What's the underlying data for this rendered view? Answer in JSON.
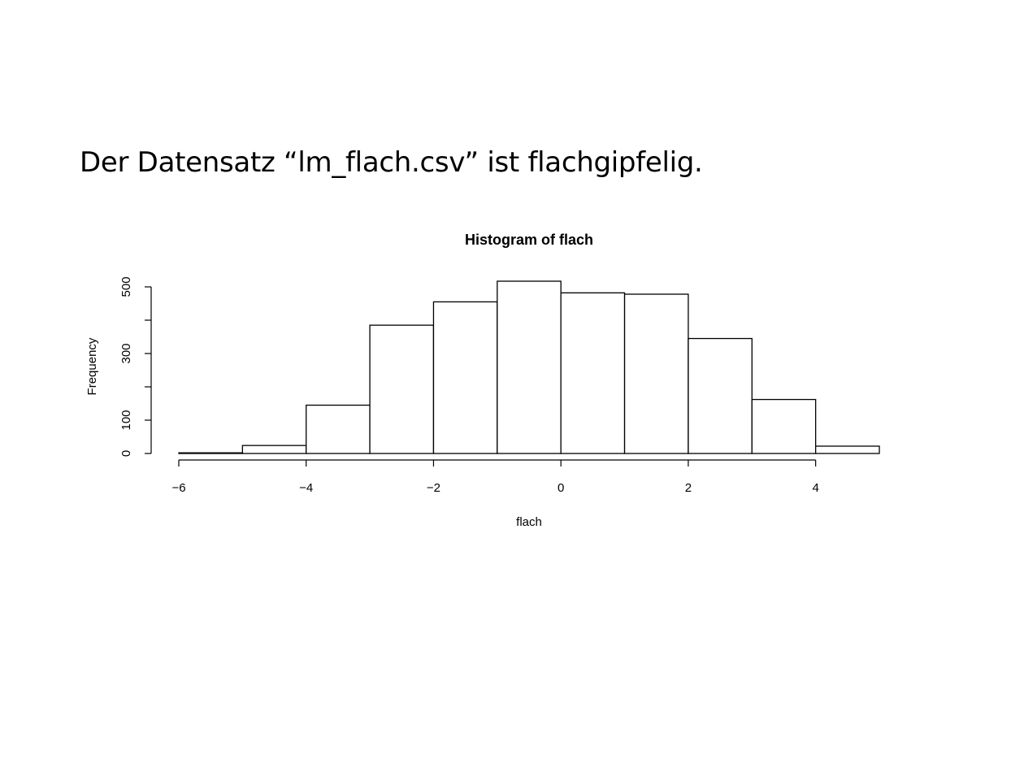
{
  "slide": {
    "text": "Der Datensatz “lm_flach.csv” ist flachgipfelig."
  },
  "chart_data": {
    "type": "bar",
    "title": "Histogram of flach",
    "xlabel": "flach",
    "ylabel": "Frequency",
    "bin_edges": [
      -6,
      -5,
      -4,
      -3,
      -2,
      -1,
      0,
      1,
      2,
      3,
      4,
      5
    ],
    "values": [
      2,
      24,
      145,
      385,
      455,
      517,
      482,
      478,
      345,
      162,
      22
    ],
    "xticks": [
      -6,
      -4,
      -2,
      0,
      2,
      4
    ],
    "xtick_labels": [
      "−6",
      "−4",
      "−2",
      "0",
      "2",
      "4"
    ],
    "yticks": [
      0,
      100,
      200,
      300,
      400,
      500
    ],
    "ytick_labels": [
      "0",
      "100",
      "",
      "300",
      "",
      "500"
    ],
    "xlim": [
      -6,
      5
    ],
    "ylim": [
      0,
      517
    ],
    "grid": false,
    "colors": {
      "fill": "#ffffff",
      "stroke": "#000000"
    }
  }
}
